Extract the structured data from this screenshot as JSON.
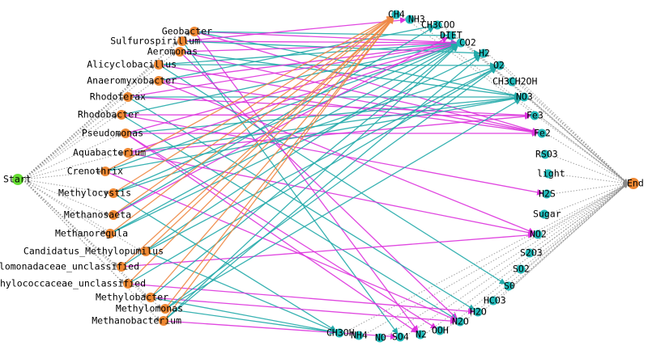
{
  "colors": {
    "background": "#ffffff",
    "start_node": "#66dd33",
    "end_node": "#ee8833",
    "taxon_node": "#ee8833",
    "molecule_node": "#22bbbb",
    "edge_magenta": "#dd33dd",
    "edge_teal": "#22aaaa",
    "edge_orange": "#ee8844",
    "edge_gray": "#888888"
  },
  "start": {
    "id": "start",
    "label": "Start"
  },
  "end": {
    "id": "end",
    "label": "End"
  },
  "taxa": [
    {
      "id": "geobacter",
      "label": "Geobacter"
    },
    {
      "id": "sulfurospirillum",
      "label": "Sulfurospirillum"
    },
    {
      "id": "aeromonas",
      "label": "Aeromonas"
    },
    {
      "id": "alicyclobacillus",
      "label": "Alicyclobacillus"
    },
    {
      "id": "anaeromyxobacter",
      "label": "Anaeromyxobacter"
    },
    {
      "id": "rhodoferax",
      "label": "Rhodoferax"
    },
    {
      "id": "rhodobacter",
      "label": "Rhodobacter"
    },
    {
      "id": "pseudomonas",
      "label": "Pseudomonas"
    },
    {
      "id": "aquabacterium",
      "label": "Aquabacterium"
    },
    {
      "id": "crenothrix",
      "label": "Crenothrix"
    },
    {
      "id": "methylocystis",
      "label": "Methylocystis"
    },
    {
      "id": "methanosaeta",
      "label": "Methanosaeta"
    },
    {
      "id": "methanoregula",
      "label": "Methanoregula"
    },
    {
      "id": "candidatus-methylopumilus",
      "label": "Candidatus_Methylopumilus"
    },
    {
      "id": "methylomonadaceae-unclassified",
      "label": "Methylomonadaceae_unclassified"
    },
    {
      "id": "methylococcaceae-unclassified",
      "label": "Methylococcaceae_unclassified"
    },
    {
      "id": "methylobacter",
      "label": "Methylobacter"
    },
    {
      "id": "methylomonas",
      "label": "Methylomonas"
    },
    {
      "id": "methanobacterium",
      "label": "Methanobacterium"
    }
  ],
  "molecules": [
    {
      "id": "ch4",
      "label": "CH4"
    },
    {
      "id": "nh3",
      "label": "NH3"
    },
    {
      "id": "ch3coo",
      "label": "CH3COO"
    },
    {
      "id": "diet",
      "label": "DIET"
    },
    {
      "id": "co2",
      "label": "CO2"
    },
    {
      "id": "h2",
      "label": "H2"
    },
    {
      "id": "o2",
      "label": "O2"
    },
    {
      "id": "ch3ch2oh",
      "label": "CH3CH2OH"
    },
    {
      "id": "no3",
      "label": "NO3"
    },
    {
      "id": "fe3",
      "label": "Fe3"
    },
    {
      "id": "fe2",
      "label": "Fe2"
    },
    {
      "id": "rso3",
      "label": "RSO3"
    },
    {
      "id": "light",
      "label": "light"
    },
    {
      "id": "h2s",
      "label": "H2S"
    },
    {
      "id": "sugar",
      "label": "Sugar"
    },
    {
      "id": "no2",
      "label": "NO2"
    },
    {
      "id": "s2o3",
      "label": "S2O3"
    },
    {
      "id": "so2",
      "label": "SO2"
    },
    {
      "id": "s0",
      "label": "S0"
    },
    {
      "id": "hco3",
      "label": "HCO3"
    },
    {
      "id": "h2o",
      "label": "H2O"
    },
    {
      "id": "n2o",
      "label": "N2O"
    },
    {
      "id": "ooh",
      "label": "OOH"
    },
    {
      "id": "n2",
      "label": "N2"
    },
    {
      "id": "so4",
      "label": "SO4"
    },
    {
      "id": "no",
      "label": "NO"
    },
    {
      "id": "nh4",
      "label": "NH4"
    },
    {
      "id": "ch3oh",
      "label": "CH3OH"
    }
  ],
  "edges": [
    {
      "from": "geobacter",
      "to": "fe2",
      "color": "magenta"
    },
    {
      "from": "geobacter",
      "to": "co2",
      "color": "magenta"
    },
    {
      "from": "geobacter",
      "to": "diet",
      "color": "teal"
    },
    {
      "from": "geobacter",
      "to": "no3",
      "color": "teal"
    },
    {
      "from": "geobacter",
      "to": "n2",
      "color": "magenta"
    },
    {
      "from": "sulfurospirillum",
      "to": "co2",
      "color": "magenta"
    },
    {
      "from": "sulfurospirillum",
      "to": "nh3",
      "color": "magenta"
    },
    {
      "from": "sulfurospirillum",
      "to": "h2",
      "color": "teal"
    },
    {
      "from": "sulfurospirillum",
      "to": "so4",
      "color": "teal"
    },
    {
      "from": "aeromonas",
      "to": "fe2",
      "color": "magenta"
    },
    {
      "from": "aeromonas",
      "to": "co2",
      "color": "magenta"
    },
    {
      "from": "aeromonas",
      "to": "no3",
      "color": "teal"
    },
    {
      "from": "aeromonas",
      "to": "n2o",
      "color": "magenta"
    },
    {
      "from": "alicyclobacillus",
      "to": "fe2",
      "color": "magenta"
    },
    {
      "from": "alicyclobacillus",
      "to": "o2",
      "color": "teal"
    },
    {
      "from": "alicyclobacillus",
      "to": "co2",
      "color": "teal"
    },
    {
      "from": "alicyclobacillus",
      "to": "s0",
      "color": "teal"
    },
    {
      "from": "anaeromyxobacter",
      "to": "fe2",
      "color": "magenta"
    },
    {
      "from": "anaeromyxobacter",
      "to": "co2",
      "color": "magenta"
    },
    {
      "from": "anaeromyxobacter",
      "to": "ch3coo",
      "color": "teal"
    },
    {
      "from": "anaeromyxobacter",
      "to": "no2",
      "color": "magenta"
    },
    {
      "from": "rhodoferax",
      "to": "fe3",
      "color": "magenta"
    },
    {
      "from": "rhodoferax",
      "to": "co2",
      "color": "magenta"
    },
    {
      "from": "rhodoferax",
      "to": "no3",
      "color": "teal"
    },
    {
      "from": "rhodoferax",
      "to": "h2o",
      "color": "teal"
    },
    {
      "from": "rhodobacter",
      "to": "fe3",
      "color": "magenta"
    },
    {
      "from": "rhodobacter",
      "to": "co2",
      "color": "teal"
    },
    {
      "from": "rhodobacter",
      "to": "h2s",
      "color": "magenta"
    },
    {
      "from": "rhodobacter",
      "to": "n2o",
      "color": "teal"
    },
    {
      "from": "pseudomonas",
      "to": "no3",
      "color": "teal"
    },
    {
      "from": "pseudomonas",
      "to": "co2",
      "color": "magenta"
    },
    {
      "from": "pseudomonas",
      "to": "fe2",
      "color": "magenta"
    },
    {
      "from": "pseudomonas",
      "to": "n2",
      "color": "magenta"
    },
    {
      "from": "pseudomonas",
      "to": "ooh",
      "color": "magenta"
    },
    {
      "from": "aquabacterium",
      "to": "no3",
      "color": "teal"
    },
    {
      "from": "aquabacterium",
      "to": "co2",
      "color": "magenta"
    },
    {
      "from": "aquabacterium",
      "to": "fe3",
      "color": "magenta"
    },
    {
      "from": "aquabacterium",
      "to": "no2",
      "color": "magenta"
    },
    {
      "from": "crenothrix",
      "to": "ch4",
      "color": "orange"
    },
    {
      "from": "crenothrix",
      "to": "co2",
      "color": "teal"
    },
    {
      "from": "crenothrix",
      "to": "no3",
      "color": "teal"
    },
    {
      "from": "crenothrix",
      "to": "n2o",
      "color": "magenta"
    },
    {
      "from": "methylocystis",
      "to": "ch4",
      "color": "orange"
    },
    {
      "from": "methylocystis",
      "to": "o2",
      "color": "teal"
    },
    {
      "from": "methylocystis",
      "to": "co2",
      "color": "teal"
    },
    {
      "from": "methylocystis",
      "to": "ch3oh",
      "color": "teal"
    },
    {
      "from": "methanosaeta",
      "to": "ch4",
      "color": "orange"
    },
    {
      "from": "methanosaeta",
      "to": "ch3coo",
      "color": "teal"
    },
    {
      "from": "methanosaeta",
      "to": "diet",
      "color": "magenta"
    },
    {
      "from": "methanoregula",
      "to": "ch4",
      "color": "orange"
    },
    {
      "from": "methanoregula",
      "to": "h2",
      "color": "teal"
    },
    {
      "from": "methanoregula",
      "to": "co2",
      "color": "teal"
    },
    {
      "from": "candidatus-methylopumilus",
      "to": "ch4",
      "color": "orange"
    },
    {
      "from": "candidatus-methylopumilus",
      "to": "ch3oh",
      "color": "teal"
    },
    {
      "from": "candidatus-methylopumilus",
      "to": "o2",
      "color": "teal"
    },
    {
      "from": "methylomonadaceae-unclassified",
      "to": "ch4",
      "color": "orange"
    },
    {
      "from": "methylomonadaceae-unclassified",
      "to": "co2",
      "color": "teal"
    },
    {
      "from": "methylomonadaceae-unclassified",
      "to": "no2",
      "color": "magenta"
    },
    {
      "from": "methylococcaceae-unclassified",
      "to": "ch4",
      "color": "orange"
    },
    {
      "from": "methylococcaceae-unclassified",
      "to": "o2",
      "color": "teal"
    },
    {
      "from": "methylococcaceae-unclassified",
      "to": "h2o",
      "color": "magenta"
    },
    {
      "from": "methylobacter",
      "to": "ch4",
      "color": "orange"
    },
    {
      "from": "methylobacter",
      "to": "co2",
      "color": "teal"
    },
    {
      "from": "methylobacter",
      "to": "n2o",
      "color": "magenta"
    },
    {
      "from": "methylobacter",
      "to": "ch3oh",
      "color": "teal"
    },
    {
      "from": "methylomonas",
      "to": "ch4",
      "color": "orange"
    },
    {
      "from": "methylomonas",
      "to": "o2",
      "color": "teal"
    },
    {
      "from": "methylomonas",
      "to": "no3",
      "color": "teal"
    },
    {
      "from": "methylomonas",
      "to": "ch3oh",
      "color": "teal"
    },
    {
      "from": "methanobacterium",
      "to": "ch4",
      "color": "orange"
    },
    {
      "from": "methanobacterium",
      "to": "h2",
      "color": "teal"
    },
    {
      "from": "methanobacterium",
      "to": "co2",
      "color": "teal"
    },
    {
      "from": "methanobacterium",
      "to": "so4",
      "color": "magenta"
    }
  ]
}
